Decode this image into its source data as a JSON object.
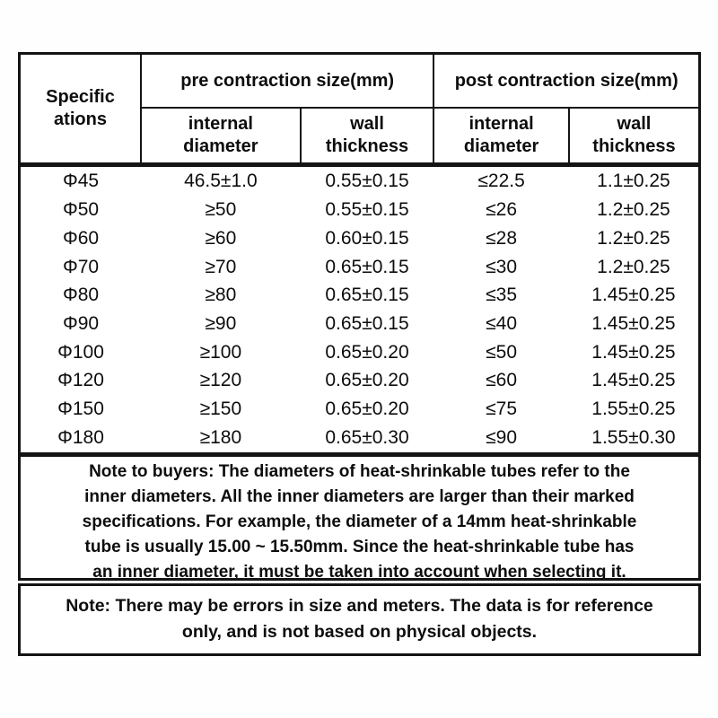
{
  "table": {
    "spec_header": [
      "Specific",
      "ations"
    ],
    "pre_header": "pre contraction size(mm)",
    "post_header": "post contraction size(mm)",
    "sub_headers": [
      [
        "internal",
        "diameter"
      ],
      [
        "wall",
        "thickness"
      ],
      [
        "internal",
        "diameter"
      ],
      [
        "wall",
        "thickness"
      ]
    ],
    "columns": [
      "specification",
      "pre-internal-diameter",
      "pre-wall-thickness",
      "post-internal-diameter",
      "post-wall-thickness"
    ],
    "rows": [
      [
        "Φ45",
        "46.5±1.0",
        "0.55±0.15",
        "≤22.5",
        "1.1±0.25"
      ],
      [
        "Φ50",
        "≥50",
        "0.55±0.15",
        "≤26",
        "1.2±0.25"
      ],
      [
        "Φ60",
        "≥60",
        "0.60±0.15",
        "≤28",
        "1.2±0.25"
      ],
      [
        "Φ70",
        "≥70",
        "0.65±0.15",
        "≤30",
        "1.2±0.25"
      ],
      [
        "Φ80",
        "≥80",
        "0.65±0.15",
        "≤35",
        "1.45±0.25"
      ],
      [
        "Φ90",
        "≥90",
        "0.65±0.15",
        "≤40",
        "1.45±0.25"
      ],
      [
        "Φ100",
        "≥100",
        "0.65±0.20",
        "≤50",
        "1.45±0.25"
      ],
      [
        "Φ120",
        "≥120",
        "0.65±0.20",
        "≤60",
        "1.45±0.25"
      ],
      [
        "Φ150",
        "≥150",
        "0.65±0.20",
        "≤75",
        "1.55±0.25"
      ],
      [
        "Φ180",
        "≥180",
        "0.65±0.30",
        "≤90",
        "1.55±0.30"
      ]
    ]
  },
  "notes": {
    "buyers_lines": [
      "Note to buyers: The diameters of heat-shrinkable tubes refer to the",
      "inner diameters. All the inner diameters are larger than their marked",
      "specifications. For example, the diameter of a 14mm heat-shrinkable",
      "tube is usually 15.00 ~ 15.50mm. Since the heat-shrinkable tube has",
      "an inner diameter, it must be taken into account when selecting it."
    ],
    "disclaimer_lines": [
      "Note: There may be errors in size and meters. The data is for reference",
      "only, and is not based on physical objects."
    ]
  },
  "colors": {
    "border": "#141414",
    "text": "#0d0d0d",
    "background": "#ffffff"
  }
}
